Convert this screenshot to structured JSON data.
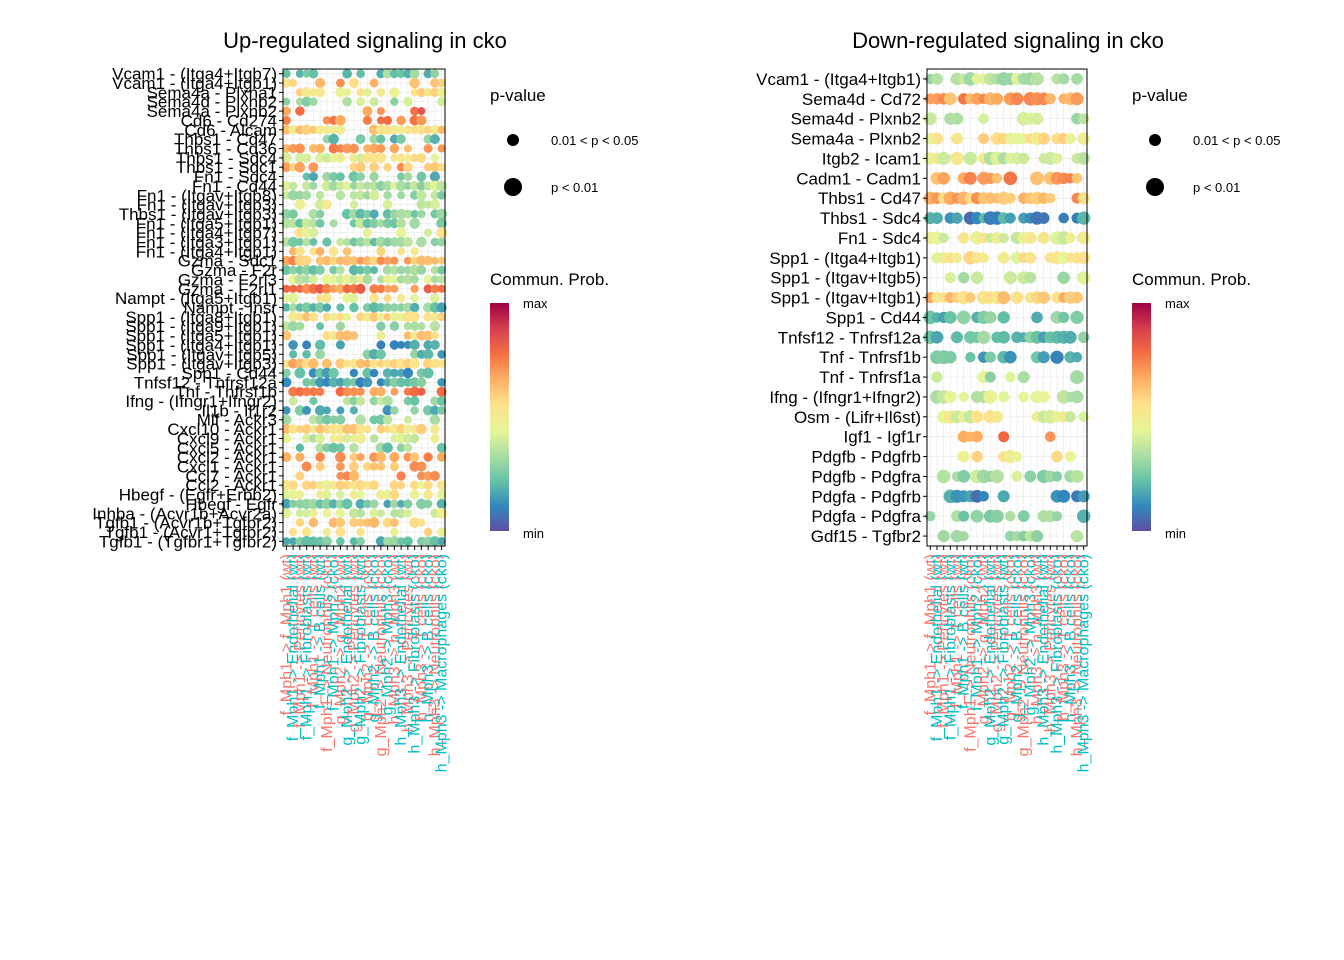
{
  "chart_data": [
    {
      "type": "scatter",
      "subtype": "bubble-dot-plot",
      "title": "Up-regulated signaling in cko",
      "xlabel": "",
      "ylabel": "",
      "grid": true,
      "legend_placement": "right",
      "size_legend_title": "p-value",
      "size_legend_entries": [
        "0.01 < p < 0.05",
        "p < 0.01"
      ],
      "color_legend_title": "Commun. Prob.",
      "color_legend_labels": [
        "max",
        "min"
      ],
      "colorscale": [
        "#5e4fa2",
        "#3288bd",
        "#66c2a5",
        "#abdda4",
        "#e6f598",
        "#fee08b",
        "#fdae61",
        "#f46d43",
        "#d53e4f",
        "#9e0142"
      ],
      "x_label_colors": [
        "#f8766d",
        "#00bfc4"
      ],
      "y_labels": [
        "Vcam1 - (Itga4+Itgb7)",
        "Vcam1 - (Itga4+Itgb1)",
        "Sema4a - Plxna1",
        "Sema4d - Plxnb2",
        "Sema4a - Plxnb2",
        "Cd6 - Cd274",
        "Cd6 - Alcam",
        "Thbs1 - Cd47",
        "Thbs1 - Cd36",
        "Thbs1 - Sdc4",
        "Thbs1 - Sdc1",
        "Fn1 - Sdc4",
        "Fn1 - Cd44",
        "Fn1 - (Itgav+Itgb8)",
        "Fn1 - (Itgav+Itgb3)",
        "Thbs1 - (Itgav+Itgb3)",
        "Fn1 - (Itga5+Itgb1)",
        "Fn1 - (Itga4+Itgb7)",
        "Fn1 - (Itga3+Itgb1)",
        "Fn1 - (Itga4+Itgb1)",
        "Gzma - Sdc1",
        "Gzma - F2r",
        "Gzma - F2rl3",
        "Gzma - F2rl1",
        "Nampt - (Itga5+Itgb1)",
        "Nampt - Insr",
        "Spp1 - (Itga8+Itgb1)",
        "Spp1 - (Itga9+Itgb1)",
        "Spp1 - (Itga5+Itgb1)",
        "Spp1 - (Itga4+Itgb1)",
        "Spp1 - (Itgav+Itgb5)",
        "Spp1 - (Itgav+Itgb3)",
        "Spp1 - Cd44",
        "Tnfsf12 - Tnfrsf12a",
        "Tnf - Tnfrsf1b",
        "Ifng - (Ifngr1+Ifngr2)",
        "Il1b - Il1r2",
        "Mif - Ackr3",
        "Cxcl10 - Ackr1",
        "Cxcl9 - Ackr1",
        "Cxcl5 - Ackr1",
        "Cxcl2 - Ackr1",
        "Cxcl1 - Ackr1",
        "Ccl7 - Ackr1",
        "Ccl2 - Ackr1",
        "Hbegf - (Egfr+Erbb2)",
        "Hbegf - Egfr",
        "Inhba - (Acvr1b+Acvr2a)",
        "Tgfb1 - (Acvr1b+Tgfbr2)",
        "Tgfb1 - (Acvr1+Tgfbr2)",
        "Tgfb1 - (Tgfbr1+Tgfbr2)"
      ],
      "x_labels": [
        "f_Mph1 -> f_Mph1 (wt)",
        "f_Mph1 -> Endothelial (wt)",
        "f_Mph1 -> Pericytes (wt)",
        "f_Mph1 -> Fibroblasts (wt)",
        "f_Mph1 -> T cells (wt)",
        "f_Mph1 -> B cells (wt)",
        "f_Mph1 -> Neutrophils (cko)",
        "f_Mph1 -> Mph2 (cko)",
        "g_Mph2 -> g_Mph2 (wt)",
        "g_Mph2 -> Endothelial (wt)",
        "g_Mph2 -> Pericytes (wt)",
        "g_Mph2 -> Fibroblasts (wt)",
        "g_Mph2 -> T cells (cko)",
        "g_Mph2 -> B cells (cko)",
        "g_Mph2 -> Neutrophils (cko)",
        "g_Mph2 -> Mph3 (cko)",
        "h_Mph3 -> h_Mph3 (wt)",
        "h_Mph3 -> Endothelial (wt)",
        "h_Mph3 -> Pericytes (wt)",
        "h_Mph3 -> Fibroblasts (cko)",
        "h_Mph3 -> T cells (cko)",
        "h_Mph3 -> B cells (cko)",
        "h_Mph3 -> Neutrophils (cko)",
        "h_Mph3 -> Macrophages (cko)"
      ]
    },
    {
      "type": "scatter",
      "subtype": "bubble-dot-plot",
      "title": "Down-regulated signaling in cko",
      "xlabel": "",
      "ylabel": "",
      "grid": true,
      "legend_placement": "right",
      "size_legend_title": "p-value",
      "size_legend_entries": [
        "0.01 < p < 0.05",
        "p < 0.01"
      ],
      "color_legend_title": "Commun. Prob.",
      "color_legend_labels": [
        "max",
        "min"
      ],
      "colorscale": [
        "#5e4fa2",
        "#3288bd",
        "#66c2a5",
        "#abdda4",
        "#e6f598",
        "#fee08b",
        "#fdae61",
        "#f46d43",
        "#d53e4f",
        "#9e0142"
      ],
      "x_label_colors": [
        "#f8766d",
        "#00bfc4"
      ],
      "y_labels": [
        "Vcam1 - (Itga4+Itgb1)",
        "Sema4d - Cd72",
        "Sema4d - Plxnb2",
        "Sema4a - Plxnb2",
        "Itgb2 - Icam1",
        "Cadm1 - Cadm1",
        "Thbs1 - Cd47",
        "Thbs1 - Sdc4",
        "Fn1 - Sdc4",
        "Spp1 - (Itga4+Itgb1)",
        "Spp1 - (Itgav+Itgb5)",
        "Spp1 - (Itgav+Itgb1)",
        "Spp1 - Cd44",
        "Tnfsf12 - Tnfrsf12a",
        "Tnf - Tnfrsf1b",
        "Tnf - Tnfrsf1a",
        "Ifng - (Ifngr1+Ifngr2)",
        "Osm - (Lifr+Il6st)",
        "Igf1 - Igf1r",
        "Pdgfb - Pdgfrb",
        "Pdgfb - Pdgfra",
        "Pdgfa - Pdgfrb",
        "Pdgfa - Pdgfra",
        "Gdf15 - Tgfbr2"
      ],
      "x_labels": [
        "f_Mph1 -> f_Mph1 (wt)",
        "f_Mph1 -> Endothelial (wt)",
        "f_Mph1 -> Pericytes (wt)",
        "f_Mph1 -> Fibroblasts (wt)",
        "f_Mph1 -> T cells (wt)",
        "f_Mph1 -> B cells (wt)",
        "f_Mph1 -> Neutrophils (cko)",
        "f_Mph1 -> Mph2 (cko)",
        "g_Mph2 -> g_Mph2 (wt)",
        "g_Mph2 -> Endothelial (wt)",
        "g_Mph2 -> Pericytes (wt)",
        "g_Mph2 -> Fibroblasts (wt)",
        "g_Mph2 -> T cells (cko)",
        "g_Mph2 -> B cells (cko)",
        "g_Mph2 -> Neutrophils (cko)",
        "g_Mph2 -> Mph3 (cko)",
        "h_Mph3 -> h_Mph3 (wt)",
        "h_Mph3 -> Endothelial (wt)",
        "h_Mph3 -> Pericytes (wt)",
        "h_Mph3 -> Fibroblasts (cko)",
        "h_Mph3 -> T cells (cko)",
        "h_Mph3 -> B cells (cko)",
        "h_Mph3 -> Neutrophils (cko)",
        "h_Mph3 -> Macrophages (cko)"
      ]
    }
  ]
}
